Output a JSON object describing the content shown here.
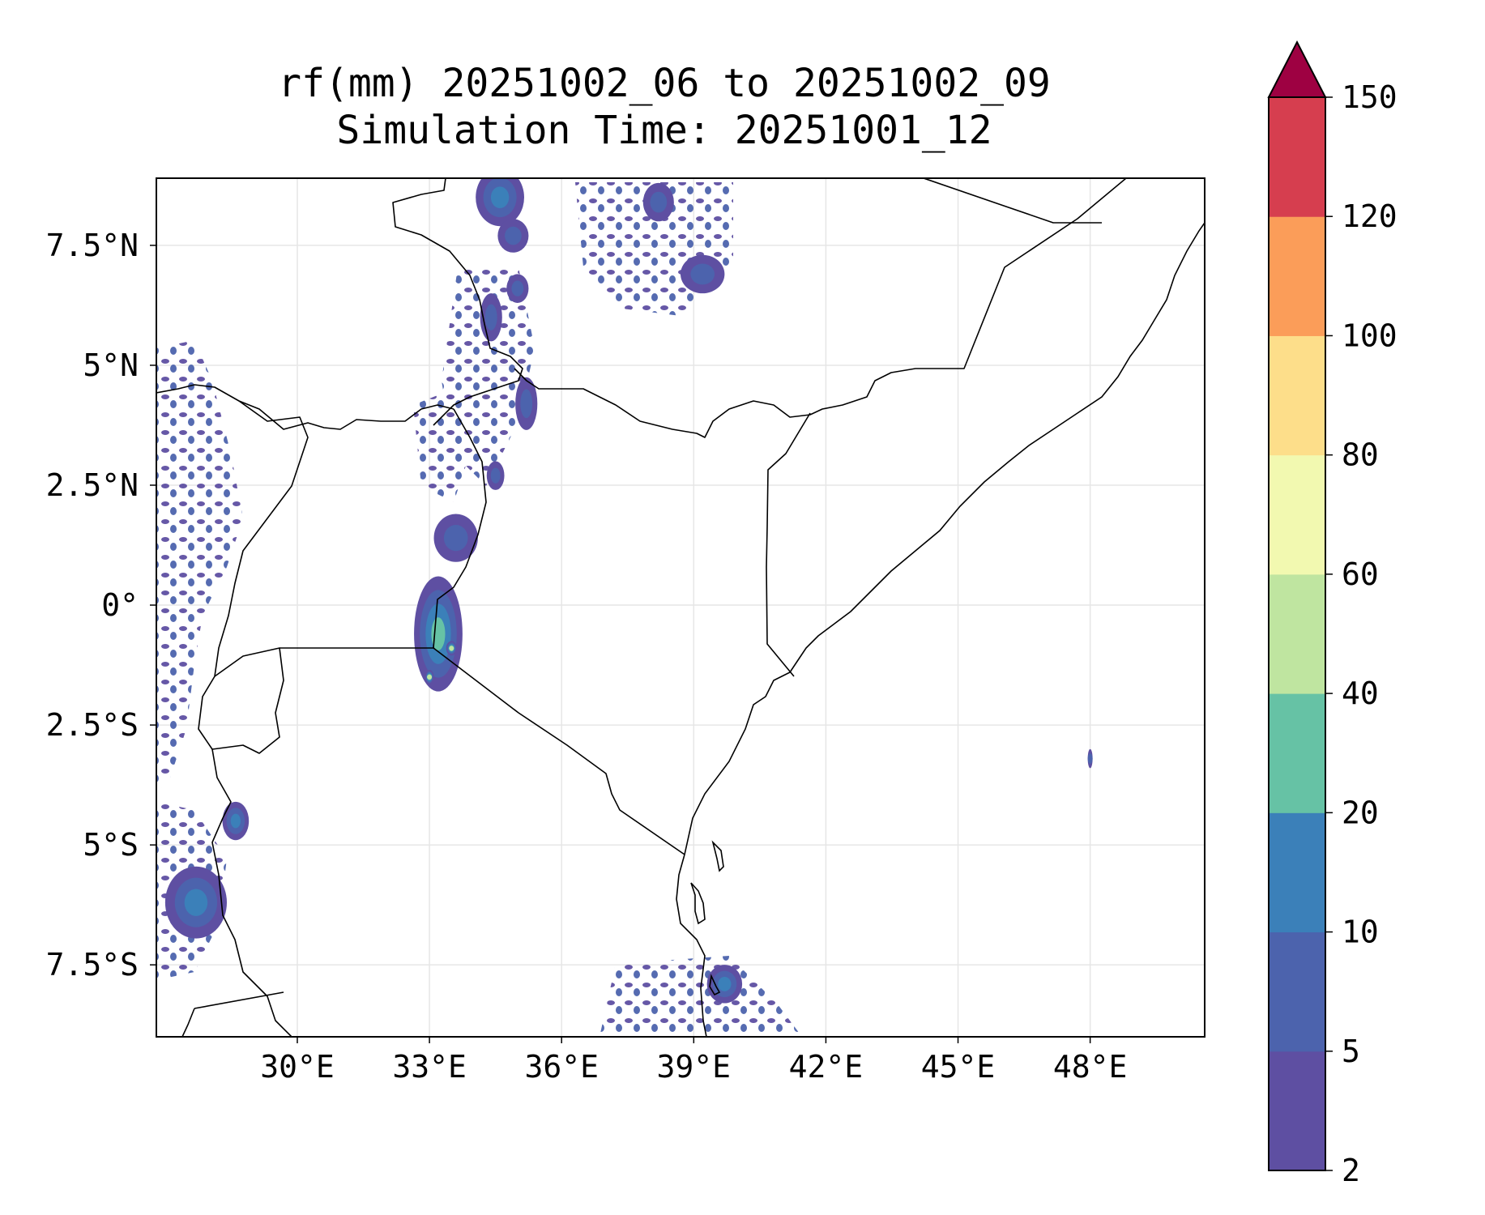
{
  "title": {
    "line1": "rf(mm) 20251002_06 to 20251002_09",
    "line2": "Simulation Time: 20251001_12"
  },
  "chart_data": {
    "type": "heatmap",
    "variable": "rf(mm)",
    "map_extent": {
      "lon": [
        26.8,
        50.6
      ],
      "lat": [
        -9.0,
        8.9
      ]
    },
    "x_ticks": [
      {
        "value": 30,
        "label": "30°E"
      },
      {
        "value": 33,
        "label": "33°E"
      },
      {
        "value": 36,
        "label": "36°E"
      },
      {
        "value": 39,
        "label": "39°E"
      },
      {
        "value": 42,
        "label": "42°E"
      },
      {
        "value": 45,
        "label": "45°E"
      },
      {
        "value": 48,
        "label": "48°E"
      }
    ],
    "y_ticks": [
      {
        "value": 7.5,
        "label": "7.5°N"
      },
      {
        "value": 5,
        "label": "5°N"
      },
      {
        "value": 2.5,
        "label": "2.5°N"
      },
      {
        "value": 0,
        "label": "0°"
      },
      {
        "value": -2.5,
        "label": "2.5°S"
      },
      {
        "value": -5,
        "label": "5°S"
      },
      {
        "value": -7.5,
        "label": "7.5°S"
      }
    ],
    "colorbar": {
      "levels": [
        2,
        5,
        10,
        20,
        40,
        60,
        80,
        100,
        120,
        150
      ],
      "labels": [
        "2",
        "5",
        "10",
        "20",
        "40",
        "60",
        "80",
        "100",
        "120",
        "150"
      ],
      "colors": [
        "#5e4fa2",
        "#4c63ad",
        "#3b80b9",
        "#66c2a5",
        "#bfe5a0",
        "#f2f9b0",
        "#fdde8a",
        "#fb9d59",
        "#d63e4f"
      ],
      "extend": "max",
      "extend_color": "#9e0142"
    },
    "rain_cells": [
      {
        "lon": 34.6,
        "lat": 8.5,
        "rx": 0.55,
        "ry": 0.6,
        "level": 2
      },
      {
        "lon": 34.9,
        "lat": 7.7,
        "rx": 0.35,
        "ry": 0.35,
        "level": 1
      },
      {
        "lon": 34.4,
        "lat": 6.0,
        "rx": 0.25,
        "ry": 0.5,
        "level": 1
      },
      {
        "lon": 35.0,
        "lat": 6.6,
        "rx": 0.25,
        "ry": 0.3,
        "level": 1
      },
      {
        "lon": 35.2,
        "lat": 4.2,
        "rx": 0.25,
        "ry": 0.55,
        "level": 1
      },
      {
        "lon": 34.5,
        "lat": 2.7,
        "rx": 0.2,
        "ry": 0.3,
        "level": 1
      },
      {
        "lon": 33.6,
        "lat": 1.4,
        "rx": 0.5,
        "ry": 0.5,
        "level": 1
      },
      {
        "lon": 33.2,
        "lat": -0.6,
        "rx": 0.55,
        "ry": 1.2,
        "level": 3
      },
      {
        "lon": 33.5,
        "lat": -0.9,
        "rx": 0.12,
        "ry": 0.15,
        "level": 4
      },
      {
        "lon": 33.0,
        "lat": -1.5,
        "rx": 0.1,
        "ry": 0.15,
        "level": 4
      },
      {
        "lon": 27.7,
        "lat": -6.2,
        "rx": 0.7,
        "ry": 0.75,
        "level": 2
      },
      {
        "lon": 28.6,
        "lat": -4.5,
        "rx": 0.3,
        "ry": 0.4,
        "level": 2
      },
      {
        "lon": 39.7,
        "lat": -7.9,
        "rx": 0.4,
        "ry": 0.4,
        "level": 2
      },
      {
        "lon": 39.2,
        "lat": 6.9,
        "rx": 0.5,
        "ry": 0.4,
        "level": 1
      },
      {
        "lon": 38.2,
        "lat": 8.4,
        "rx": 0.35,
        "ry": 0.4,
        "level": 1
      },
      {
        "lon": 48.0,
        "lat": -3.2,
        "rx": 0.05,
        "ry": 0.2,
        "level": 1
      }
    ]
  }
}
